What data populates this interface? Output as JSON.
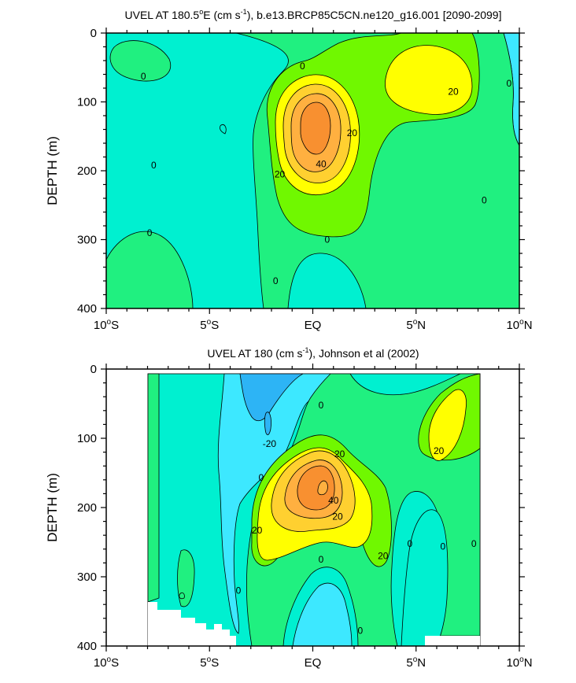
{
  "colors": {
    "neg_lt_minus20": "#2DB4F5",
    "neg_minus20_to_0": "#3DE8FF",
    "pos_0_to_10": "#00F0D0",
    "pos_10_to_20": "#20F080",
    "pos_20_to_30": "#70F800",
    "pos_30_to_40": "#FFFF00",
    "pos_40_to_50": "#FFD030",
    "pos_50_to_60": "#FFB040",
    "pos_gt_60": "#F89030",
    "contour_line": "#000000"
  },
  "chart_data": [
    {
      "type": "heatmap",
      "title_prefix": "UVEL AT 180.5",
      "title_superscript": "o",
      "title_mid": "E (cm s",
      "title_exp": "-1",
      "title_suffix": "), b.e13.BRCP85C5CN.ne120_g16.001 [2090-2099]",
      "xlabel": "",
      "ylabel": "DEPTH (m)",
      "xlim": [
        -10,
        10
      ],
      "ylim": [
        0,
        400
      ],
      "y_reversed": true,
      "x_ticks": [
        {
          "value": -10,
          "num": "10",
          "deg": "o",
          "hemi": "S"
        },
        {
          "value": -5,
          "num": "5",
          "deg": "o",
          "hemi": "S"
        },
        {
          "value": 0,
          "num": "EQ",
          "deg": "",
          "hemi": ""
        },
        {
          "value": 5,
          "num": "5",
          "deg": "o",
          "hemi": "N"
        },
        {
          "value": 10,
          "num": "10",
          "deg": "o",
          "hemi": "N"
        }
      ],
      "y_ticks": [
        "0",
        "100",
        "200",
        "300",
        "400"
      ],
      "contour_labels": [
        {
          "text": "0",
          "x": -8.2,
          "y": 63
        },
        {
          "text": "0",
          "x": -0.5,
          "y": 48
        },
        {
          "text": "0",
          "x": 9.5,
          "y": 73
        },
        {
          "text": "20",
          "x": 6.8,
          "y": 85
        },
        {
          "text": "20",
          "x": 1.9,
          "y": 145
        },
        {
          "text": "40",
          "x": 0.4,
          "y": 190
        },
        {
          "text": "20",
          "x": -1.6,
          "y": 205
        },
        {
          "text": "0",
          "x": -7.7,
          "y": 192
        },
        {
          "text": "0",
          "x": 8.3,
          "y": 243
        },
        {
          "text": "0",
          "x": -7.9,
          "y": 290
        },
        {
          "text": "0",
          "x": 0.7,
          "y": 300
        },
        {
          "text": "0",
          "x": -1.8,
          "y": 360
        }
      ]
    },
    {
      "type": "heatmap",
      "title_prefix": "UVEL AT 180 (cm s",
      "title_exp": "-1",
      "title_suffix": "), Johnson et al (2002)",
      "xlabel": "",
      "ylabel": "DEPTH (m)",
      "xlim": [
        -10,
        10
      ],
      "ylim": [
        0,
        400
      ],
      "y_reversed": true,
      "data_x_range": [
        -8,
        8
      ],
      "x_ticks": [
        {
          "value": -10,
          "num": "10",
          "deg": "o",
          "hemi": "S"
        },
        {
          "value": -5,
          "num": "5",
          "deg": "o",
          "hemi": "S"
        },
        {
          "value": 0,
          "num": "EQ",
          "deg": "",
          "hemi": ""
        },
        {
          "value": 5,
          "num": "5",
          "deg": "o",
          "hemi": "N"
        },
        {
          "value": 10,
          "num": "10",
          "deg": "o",
          "hemi": "N"
        }
      ],
      "y_ticks": [
        "0",
        "100",
        "200",
        "300",
        "400"
      ],
      "contour_labels": [
        {
          "text": "-20",
          "x": -2.1,
          "y": 108
        },
        {
          "text": "0",
          "x": 0.4,
          "y": 52
        },
        {
          "text": "20",
          "x": 1.3,
          "y": 123
        },
        {
          "text": "20",
          "x": 6.1,
          "y": 118
        },
        {
          "text": "0",
          "x": -2.5,
          "y": 157
        },
        {
          "text": "40",
          "x": 1.0,
          "y": 190
        },
        {
          "text": "20",
          "x": 1.2,
          "y": 213
        },
        {
          "text": "20",
          "x": -2.7,
          "y": 233
        },
        {
          "text": "0",
          "x": 0.4,
          "y": 275
        },
        {
          "text": "20",
          "x": 3.4,
          "y": 270
        },
        {
          "text": "0",
          "x": 4.7,
          "y": 252
        },
        {
          "text": "0",
          "x": 6.3,
          "y": 256
        },
        {
          "text": "0",
          "x": 7.8,
          "y": 252
        },
        {
          "text": "0",
          "x": -3.6,
          "y": 320
        },
        {
          "text": "0",
          "x": 2.3,
          "y": 378
        }
      ]
    }
  ]
}
